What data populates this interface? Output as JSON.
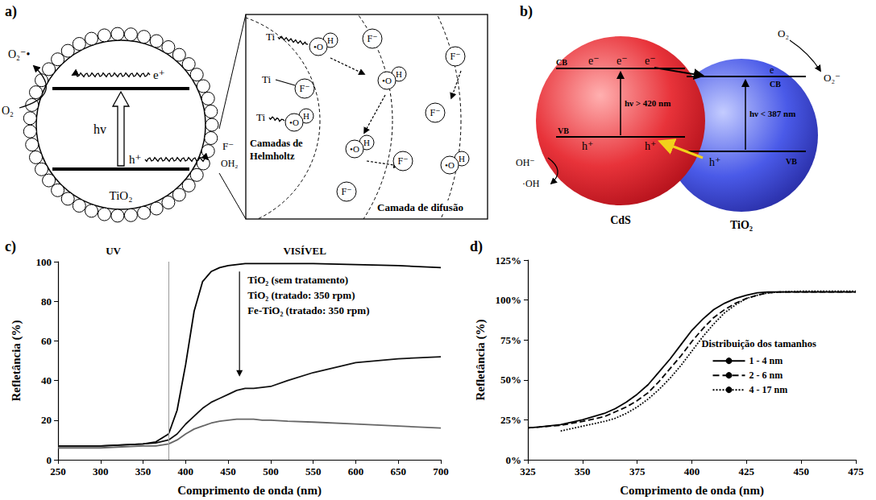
{
  "panels": {
    "a": {
      "letter": "a)",
      "particle": {
        "label": "TiO₂",
        "photon": "hv",
        "electron": "e⁺",
        "hole": "h⁺",
        "oxygen": "O₂",
        "superoxide": "O₂⁻•",
        "fluoride": "F⁻",
        "water": "OH₂"
      },
      "inset": {
        "titanium": "Ti",
        "fluoride": "F⁻",
        "hydroxyl": [
          "•O",
          "H"
        ],
        "helmholtz": "Camadas de Helmholtz",
        "diffusion": "Camada de difusão"
      }
    },
    "b": {
      "letter": "b)",
      "cds": {
        "label": "CdS",
        "cb": "CB",
        "vb": "VB",
        "electron": "e⁻",
        "hole": "h⁺",
        "photon": "hν > 420 nm",
        "hydroxide": "OH⁻",
        "radical": "·OH"
      },
      "tio2": {
        "label": "TiO₂",
        "cb": "CB",
        "vb": "VB",
        "electron": "e",
        "hole": "h⁺",
        "photon": "hν < 387 nm",
        "oxygen": "O₂",
        "superoxide": "O₂⁻"
      }
    },
    "c": {
      "letter": "c)"
    },
    "d": {
      "letter": "d)"
    }
  },
  "chart_data": [
    {
      "type": "line",
      "x_label": "Comprimento de onda (nm)",
      "y_label": "Refletância (%)",
      "annotations": [
        "UV",
        "VISÍVEL"
      ],
      "vline": 380,
      "x": [
        250,
        275,
        300,
        325,
        350,
        365,
        380,
        390,
        400,
        410,
        420,
        430,
        440,
        450,
        460,
        470,
        480,
        490,
        500,
        520,
        550,
        600,
        650,
        700
      ],
      "series": [
        {
          "name": "TiO₂ (sem tratamento)",
          "color": "#000000",
          "values": [
            7,
            7,
            7,
            7.5,
            8,
            9,
            13,
            25,
            48,
            75,
            90,
            95,
            97,
            98,
            98.5,
            99,
            99,
            99,
            99,
            99,
            99,
            98.5,
            98,
            97
          ]
        },
        {
          "name": "TiO₂ (tratado: 350 rpm)",
          "color": "#111111",
          "values": [
            7,
            7,
            7,
            7.5,
            8,
            8.5,
            10,
            13,
            18,
            22,
            26,
            29,
            31,
            33,
            35,
            36,
            36,
            36.5,
            37,
            40,
            44,
            49,
            51,
            52
          ]
        },
        {
          "name": "Fe-TiO₂ (tratado: 350 rpm)",
          "color": "#666666",
          "values": [
            6,
            6,
            6,
            6.5,
            7,
            7,
            8,
            10,
            13,
            15.5,
            17,
            18.5,
            19.5,
            20,
            20.5,
            20.5,
            20.5,
            20,
            20,
            19.5,
            19,
            18,
            17,
            16
          ]
        }
      ],
      "xlim": [
        250,
        700
      ],
      "xticks": [
        250,
        300,
        350,
        400,
        450,
        500,
        550,
        600,
        650,
        700
      ],
      "ylim": [
        0,
        100
      ],
      "yticks": [
        0,
        20,
        40,
        60,
        80,
        100
      ],
      "grid": false
    },
    {
      "type": "line",
      "x_label": "Comprimento de onda (nm)",
      "y_label": "Refletância (%)",
      "legend_title": "Distribuição dos tamanhos",
      "legend": "right",
      "x": [
        325,
        330,
        340,
        350,
        360,
        365,
        370,
        375,
        380,
        385,
        390,
        395,
        400,
        405,
        410,
        415,
        420,
        425,
        430,
        435,
        440,
        450,
        460,
        475
      ],
      "series": [
        {
          "name": "1 - 4 nm",
          "color": "#000000",
          "line_style": "solid",
          "values": [
            20,
            20.5,
            22,
            25,
            29,
            32,
            36,
            41,
            47,
            55,
            63,
            72,
            81,
            88,
            94,
            98,
            101,
            103,
            104.5,
            105,
            105,
            105,
            105,
            105
          ]
        },
        {
          "name": "2 - 6 nm",
          "color": "#000000",
          "line_style": "dashed",
          "values": [
            20,
            20.5,
            21.5,
            24,
            27,
            30,
            33,
            37,
            42,
            49,
            57,
            65,
            74,
            82,
            89,
            94,
            98,
            101,
            103,
            104.5,
            105,
            105,
            105,
            105
          ]
        },
        {
          "name": "4 - 17 nm",
          "color": "#000000",
          "line_style": "dotted",
          "values": [
            null,
            null,
            18,
            21,
            24,
            26,
            29,
            33,
            38,
            44,
            51,
            59,
            68,
            77,
            85,
            92,
            97,
            101,
            103,
            104.5,
            105,
            105.5,
            105.5,
            105.5
          ]
        }
      ],
      "xlim": [
        325,
        475
      ],
      "xticks": [
        325,
        350,
        375,
        400,
        425,
        450,
        475
      ],
      "ylim": [
        0,
        125
      ],
      "yticks": [
        {
          "value": 0,
          "label": "0%"
        },
        {
          "value": 25,
          "label": "25%"
        },
        {
          "value": 50,
          "label": "50%"
        },
        {
          "value": 75,
          "label": "75%"
        },
        {
          "value": 100,
          "label": "100%"
        },
        {
          "value": 125,
          "label": "125%"
        }
      ],
      "grid": false
    }
  ]
}
